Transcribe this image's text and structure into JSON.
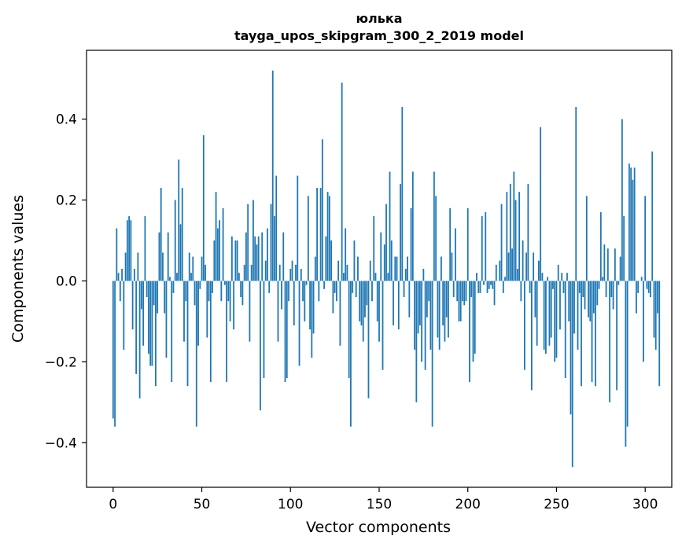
{
  "chart_data": {
    "type": "bar",
    "title_line1": "юлька",
    "title_line2": "tayga_upos_skipgram_300_2_2019 model",
    "xlabel": "Vector components",
    "ylabel": "Components values",
    "xlim": [
      -15,
      315
    ],
    "ylim": [
      -0.51,
      0.57
    ],
    "xticks": [
      0,
      50,
      100,
      150,
      200,
      250,
      300
    ],
    "xtick_labels": [
      "0",
      "50",
      "100",
      "150",
      "200",
      "250",
      "300"
    ],
    "yticks": [
      -0.4,
      -0.2,
      0.0,
      0.2,
      0.4
    ],
    "ytick_labels": [
      "−0.4",
      "−0.2",
      "0.0",
      "0.2",
      "0.4"
    ],
    "bar_color": "#1f77b4",
    "values": [
      -0.34,
      -0.36,
      0.13,
      0.02,
      -0.05,
      0.03,
      -0.17,
      0.07,
      0.15,
      0.16,
      0.15,
      -0.12,
      0.03,
      -0.23,
      0.07,
      -0.29,
      -0.07,
      -0.16,
      0.16,
      -0.04,
      -0.18,
      -0.21,
      -0.21,
      -0.06,
      -0.26,
      -0.08,
      0.12,
      0.23,
      0.07,
      -0.08,
      -0.19,
      0.12,
      0.01,
      -0.25,
      -0.03,
      0.2,
      0.02,
      0.3,
      0.14,
      0.23,
      -0.15,
      -0.05,
      -0.26,
      0.07,
      0.02,
      0.06,
      -0.06,
      -0.36,
      -0.16,
      -0.02,
      0.06,
      0.36,
      0.04,
      -0.14,
      -0.05,
      -0.25,
      -0.03,
      0.1,
      0.22,
      0.13,
      0.15,
      -0.05,
      0.18,
      -0.01,
      -0.25,
      -0.05,
      -0.1,
      0.11,
      -0.12,
      0.1,
      0.1,
      0.02,
      -0.04,
      -0.06,
      0.04,
      0.12,
      0.19,
      -0.15,
      0.04,
      0.2,
      0.11,
      0.09,
      0.11,
      -0.32,
      0.12,
      -0.24,
      0.05,
      0.13,
      -0.03,
      0.19,
      0.52,
      0.16,
      0.26,
      -0.15,
      0.04,
      -0.07,
      0.12,
      -0.25,
      -0.24,
      -0.05,
      0.03,
      0.05,
      -0.11,
      0.04,
      0.26,
      -0.21,
      0.03,
      -0.05,
      -0.1,
      -0.01,
      0.21,
      -0.12,
      -0.19,
      -0.13,
      0.06,
      0.23,
      -0.05,
      0.23,
      0.35,
      -0.02,
      0.11,
      0.22,
      0.21,
      0.1,
      -0.08,
      -0.03,
      -0.05,
      0.05,
      -0.16,
      0.49,
      0.02,
      0.13,
      0.04,
      -0.24,
      -0.36,
      -0.03,
      0.1,
      -0.04,
      0.06,
      -0.1,
      -0.11,
      -0.15,
      -0.09,
      -0.06,
      -0.29,
      0.05,
      -0.05,
      0.16,
      0.02,
      -0.1,
      -0.15,
      0.12,
      -0.22,
      0.09,
      0.19,
      0.02,
      0.27,
      0.1,
      -0.11,
      0.06,
      0.06,
      -0.12,
      0.24,
      0.43,
      -0.04,
      0.03,
      0.06,
      -0.09,
      0.18,
      0.27,
      -0.17,
      -0.3,
      -0.13,
      -0.11,
      -0.2,
      0.03,
      -0.22,
      -0.09,
      -0.05,
      -0.17,
      -0.36,
      0.27,
      0.21,
      -0.14,
      -0.17,
      0.06,
      -0.11,
      -0.15,
      -0.09,
      -0.14,
      0.18,
      0.07,
      -0.04,
      0.13,
      -0.05,
      -0.1,
      -0.1,
      -0.05,
      -0.06,
      -0.05,
      0.18,
      -0.25,
      -0.04,
      -0.2,
      -0.18,
      0.02,
      -0.03,
      -0.03,
      0.16,
      -0.01,
      0.17,
      -0.03,
      -0.02,
      -0.01,
      -0.02,
      -0.06,
      0.04,
      0.0,
      0.05,
      0.19,
      -0.03,
      0.01,
      0.22,
      0.07,
      0.24,
      0.08,
      0.27,
      0.2,
      0.03,
      0.22,
      -0.05,
      0.1,
      -0.22,
      0.07,
      0.24,
      -0.03,
      -0.27,
      0.07,
      -0.09,
      -0.16,
      0.05,
      0.38,
      0.02,
      -0.17,
      -0.18,
      0.01,
      -0.16,
      -0.14,
      -0.02,
      -0.2,
      -0.19,
      0.04,
      -0.12,
      0.02,
      -0.03,
      -0.24,
      0.02,
      -0.1,
      -0.33,
      -0.46,
      -0.13,
      0.43,
      -0.17,
      -0.03,
      -0.26,
      -0.04,
      -0.07,
      0.21,
      -0.09,
      -0.1,
      -0.25,
      -0.08,
      -0.26,
      -0.06,
      -0.02,
      0.17,
      0.01,
      0.09,
      -0.04,
      0.08,
      -0.3,
      -0.04,
      -0.07,
      0.08,
      -0.27,
      -0.01,
      0.06,
      0.4,
      0.16,
      -0.41,
      -0.36,
      0.29,
      0.28,
      0.25,
      0.28,
      -0.08,
      -0.03,
      0.0,
      0.01,
      -0.2,
      0.21,
      -0.02,
      -0.03,
      -0.04,
      0.32,
      -0.14,
      -0.17,
      -0.08,
      -0.26
    ]
  }
}
